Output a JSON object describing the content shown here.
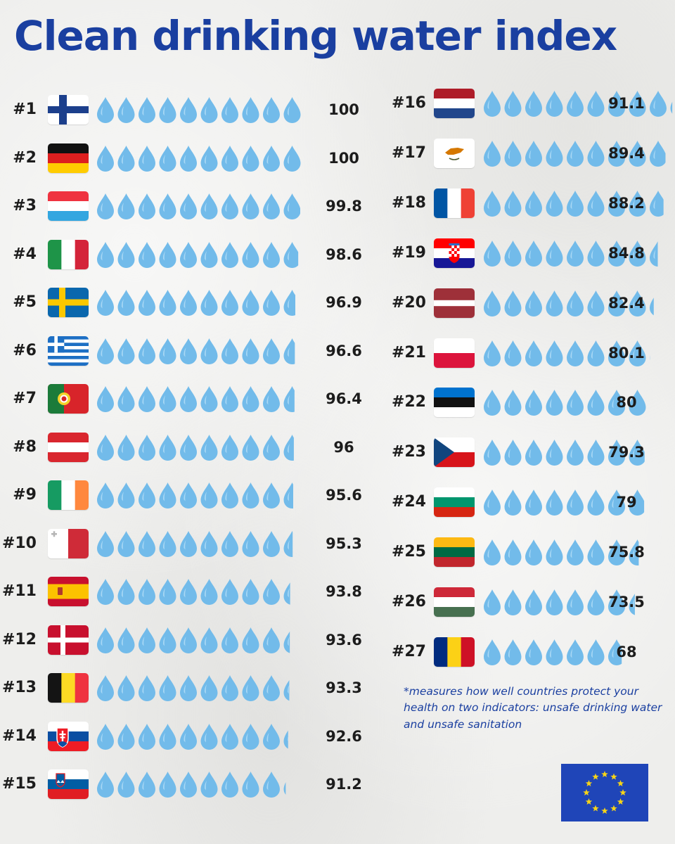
{
  "title": "Clean drinking water index",
  "footnote": "*measures how well countries protect your health on two indicators: unsafe drinking water and unsafe sanitation",
  "colors": {
    "title": "#1a3fa0",
    "drop": "#72bbea",
    "drop_highlight": "#a9d8f5",
    "eu_blue": "#1f45b8",
    "eu_star": "#f7d417"
  },
  "icons": {
    "unit": "water-drop-icon",
    "logo": "eu-flag-icon"
  },
  "chart_data": {
    "type": "bar",
    "title": "Clean drinking water index",
    "units_per_icon": 10,
    "max": 100,
    "entries": [
      {
        "rank": "#1",
        "country": "Finland",
        "value": 100
      },
      {
        "rank": "#2",
        "country": "Germany",
        "value": 100
      },
      {
        "rank": "#3",
        "country": "Luxembourg",
        "value": 99.8
      },
      {
        "rank": "#4",
        "country": "Italy",
        "value": 98.6
      },
      {
        "rank": "#5",
        "country": "Sweden",
        "value": 96.9
      },
      {
        "rank": "#6",
        "country": "Greece",
        "value": 96.6
      },
      {
        "rank": "#7",
        "country": "Portugal",
        "value": 96.4
      },
      {
        "rank": "#8",
        "country": "Austria",
        "value": 96
      },
      {
        "rank": "#9",
        "country": "Ireland",
        "value": 95.6
      },
      {
        "rank": "#10",
        "country": "Malta",
        "value": 95.3
      },
      {
        "rank": "#11",
        "country": "Spain",
        "value": 93.8
      },
      {
        "rank": "#12",
        "country": "Denmark",
        "value": 93.6
      },
      {
        "rank": "#13",
        "country": "Belgium",
        "value": 93.3
      },
      {
        "rank": "#14",
        "country": "Slovakia",
        "value": 92.6
      },
      {
        "rank": "#15",
        "country": "Slovenia",
        "value": 91.2
      },
      {
        "rank": "#16",
        "country": "Netherlands",
        "value": 91.1
      },
      {
        "rank": "#17",
        "country": "Cyprus",
        "value": 89.4
      },
      {
        "rank": "#18",
        "country": "France",
        "value": 88.2
      },
      {
        "rank": "#19",
        "country": "Croatia",
        "value": 84.8
      },
      {
        "rank": "#20",
        "country": "Latvia",
        "value": 82.4
      },
      {
        "rank": "#21",
        "country": "Poland",
        "value": 80.1
      },
      {
        "rank": "#22",
        "country": "Estonia",
        "value": 80
      },
      {
        "rank": "#23",
        "country": "Czechia",
        "value": 79.3
      },
      {
        "rank": "#24",
        "country": "Bulgaria",
        "value": 79
      },
      {
        "rank": "#25",
        "country": "Lithuania",
        "value": 75.8
      },
      {
        "rank": "#26",
        "country": "Hungary",
        "value": 73.5
      },
      {
        "rank": "#27",
        "country": "Romania",
        "value": 68
      }
    ]
  }
}
